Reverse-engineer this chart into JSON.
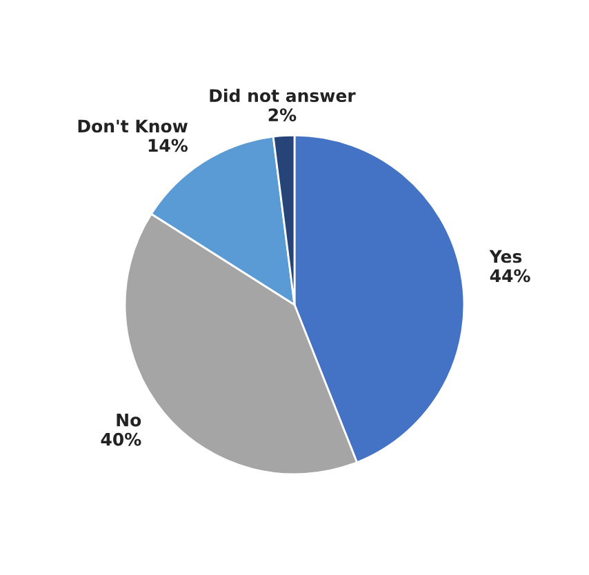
{
  "chart_data": {
    "type": "pie",
    "categories": [
      "Yes",
      "No",
      "Don't Know",
      "Did not answer"
    ],
    "values": [
      44,
      40,
      14,
      2
    ],
    "colors": [
      "#4472c4",
      "#a5a5a5",
      "#5b9bd5",
      "#264478"
    ],
    "value_labels": [
      "44%",
      "40%",
      "14%",
      "2%"
    ]
  }
}
